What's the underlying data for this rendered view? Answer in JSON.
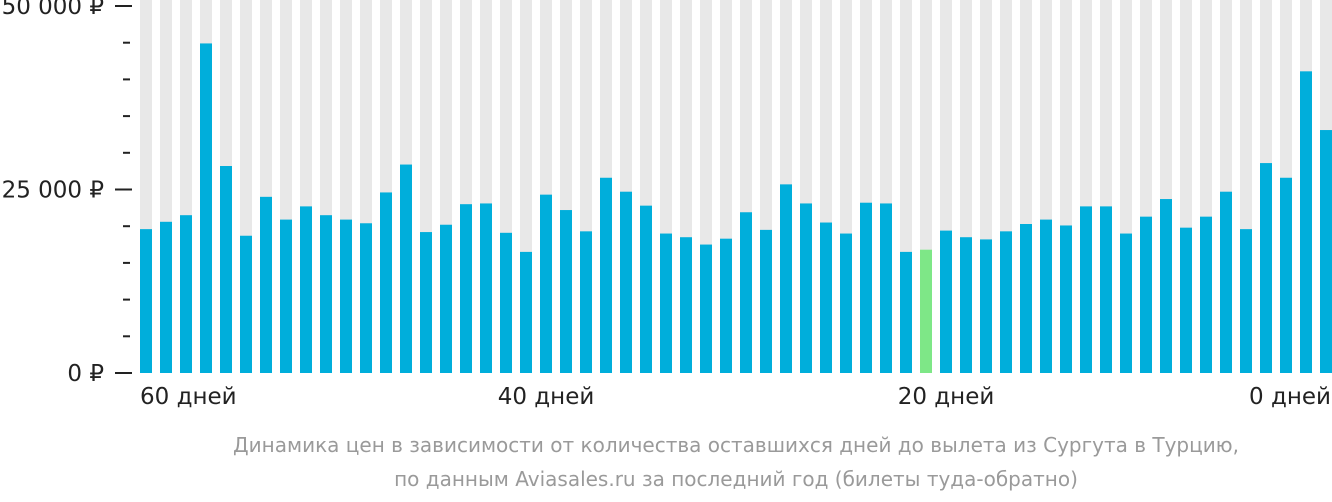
{
  "chart_data": {
    "type": "bar",
    "currency": "₽",
    "ylim": [
      0,
      50000
    ],
    "y_major_ticks": [
      {
        "value": 0,
        "label": "0 ₽"
      },
      {
        "value": 25000,
        "label": "25 000 ₽"
      },
      {
        "value": 50000,
        "label": "50 000 ₽"
      }
    ],
    "y_minor_step": 5000,
    "x_tick_labels": [
      {
        "day": 60,
        "label": "60 дней"
      },
      {
        "day": 40,
        "label": "40 дней"
      },
      {
        "day": 20,
        "label": "20 дней"
      },
      {
        "day": 0,
        "label": "0 дней"
      }
    ],
    "days": [
      60,
      59,
      58,
      57,
      56,
      55,
      54,
      53,
      52,
      51,
      50,
      49,
      48,
      47,
      46,
      45,
      44,
      43,
      42,
      41,
      40,
      39,
      38,
      37,
      36,
      35,
      34,
      33,
      32,
      31,
      30,
      29,
      28,
      27,
      26,
      25,
      24,
      23,
      22,
      21,
      20,
      19,
      18,
      17,
      16,
      15,
      14,
      13,
      12,
      11,
      10,
      9,
      8,
      7,
      6,
      5,
      4,
      3,
      2,
      1,
      0
    ],
    "values": [
      19600,
      20600,
      21500,
      44900,
      28200,
      18700,
      24000,
      20900,
      22700,
      21500,
      20900,
      20400,
      24600,
      28400,
      19200,
      20200,
      23000,
      23100,
      19100,
      16500,
      24300,
      22200,
      19300,
      26600,
      24700,
      22800,
      19000,
      18500,
      17500,
      18300,
      21900,
      19500,
      25700,
      23100,
      20500,
      19000,
      23200,
      23100,
      16500,
      16800,
      19400,
      18500,
      18200,
      19300,
      20300,
      20900,
      20100,
      22700,
      22700,
      19000,
      21300,
      23700,
      19800,
      21300,
      24700,
      19600,
      28600,
      26600,
      41100,
      33100,
      null
    ],
    "highlight_day": 21,
    "colors": {
      "bar": "#00aedb",
      "highlight": "#7ee787",
      "background_column": "#e8e8e8",
      "text": "#222222",
      "caption": "#9a9a9a"
    }
  },
  "caption": {
    "line1": "Динамика цен в зависимости от количества оставшихся дней до вылета из Сургута в Турцию,",
    "line2": "по данным Aviasales.ru за последний год (билеты туда-обратно)"
  }
}
